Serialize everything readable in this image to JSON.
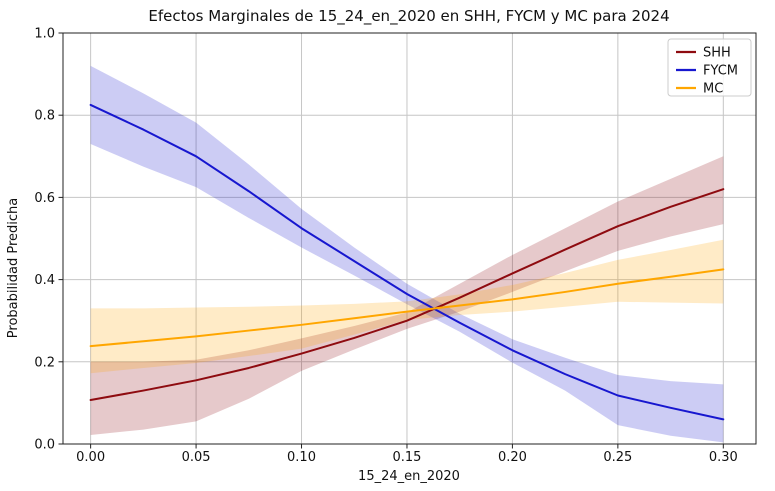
{
  "chart_data": {
    "type": "line",
    "title": "Efectos Marginales de 15_24_en_2020 en SHH, FYCM y MC para 2024",
    "xlabel": "15_24_en_2020",
    "ylabel": "Probabilidad Predicha",
    "xlim": [
      -0.0131,
      0.3155
    ],
    "ylim": [
      0.0,
      1.0
    ],
    "xticks": [
      "0.00",
      "0.05",
      "0.10",
      "0.15",
      "0.20",
      "0.25",
      "0.30"
    ],
    "xtick_values": [
      0.0,
      0.05,
      0.1,
      0.15,
      0.2,
      0.25,
      0.3
    ],
    "yticks": [
      "0.0",
      "0.2",
      "0.4",
      "0.6",
      "0.8",
      "1.0"
    ],
    "ytick_values": [
      0.0,
      0.2,
      0.4,
      0.6,
      0.8,
      1.0
    ],
    "grid": true,
    "grid_color": "#c6c6c6",
    "spine_color": "#222222",
    "legend_position": "upper right",
    "band_alpha": 0.22,
    "x": [
      0,
      0.025,
      0.05,
      0.075,
      0.1,
      0.125,
      0.15,
      0.175,
      0.2,
      0.225,
      0.25,
      0.275,
      0.3
    ],
    "series": [
      {
        "name": "SHH",
        "color": "#8e0b10",
        "values": [
          0.107,
          0.13,
          0.155,
          0.185,
          0.22,
          0.258,
          0.3,
          0.356,
          0.415,
          0.473,
          0.53,
          0.577,
          0.62
        ],
        "ci_upper": [
          0.2,
          0.2,
          0.205,
          0.228,
          0.257,
          0.287,
          0.32,
          0.39,
          0.46,
          0.525,
          0.59,
          0.645,
          0.7
        ],
        "ci_lower": [
          0.022,
          0.035,
          0.055,
          0.11,
          0.178,
          0.23,
          0.28,
          0.322,
          0.37,
          0.42,
          0.47,
          0.505,
          0.535
        ]
      },
      {
        "name": "FYCM",
        "color": "#1717cf",
        "values": [
          0.825,
          0.765,
          0.7,
          0.615,
          0.525,
          0.445,
          0.365,
          0.295,
          0.228,
          0.17,
          0.118,
          0.088,
          0.06
        ],
        "ci_upper": [
          0.92,
          0.853,
          0.782,
          0.68,
          0.572,
          0.478,
          0.39,
          0.317,
          0.255,
          0.21,
          0.168,
          0.153,
          0.145
        ],
        "ci_lower": [
          0.73,
          0.675,
          0.625,
          0.55,
          0.478,
          0.41,
          0.34,
          0.273,
          0.198,
          0.13,
          0.046,
          0.02,
          0.004
        ]
      },
      {
        "name": "MC",
        "color": "#ffa600",
        "values": [
          0.238,
          0.25,
          0.262,
          0.276,
          0.29,
          0.306,
          0.322,
          0.337,
          0.352,
          0.37,
          0.39,
          0.407,
          0.425
        ],
        "ci_upper": [
          0.33,
          0.33,
          0.332,
          0.334,
          0.337,
          0.341,
          0.347,
          0.364,
          0.387,
          0.416,
          0.448,
          0.472,
          0.497
        ],
        "ci_lower": [
          0.172,
          0.185,
          0.197,
          0.214,
          0.232,
          0.266,
          0.302,
          0.314,
          0.322,
          0.334,
          0.346,
          0.344,
          0.342
        ]
      }
    ]
  }
}
